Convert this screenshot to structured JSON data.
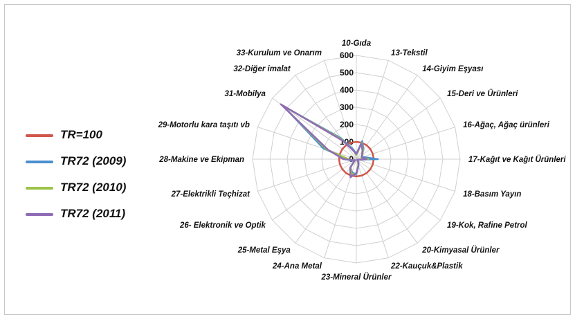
{
  "chart_data": {
    "type": "radar",
    "title": "",
    "categories": [
      "10-Gıda",
      "13-Tekstil",
      "14-Giyim Eşyası",
      "15-Deri ve Ürünleri",
      "16-Ağaç, Ağaç ürünleri",
      "17-Kağıt ve Kağıt Ürünleri",
      "18-Basım Yayın",
      "19-Kok, Rafine Petrol",
      "20-Kimyasal Ürünler",
      "22-Kauçuk&Plastik",
      "23-Mineral Ürünler",
      "24-Ana Metal",
      "25-Metal Eşya",
      "26- Elektronik ve Optik",
      "27-Elektrikli Teçhizat",
      "28-Makine ve Ekipman",
      "29-Motorlu kara taşıtı vb",
      "31-Mobilya",
      "32-Diğer imalat",
      "33-Kurulum ve Onarım"
    ],
    "rlim": [
      0,
      600
    ],
    "rticks": [
      "0",
      "100",
      "200",
      "300",
      "400",
      "500",
      "600"
    ],
    "grid": true,
    "legend_position": "left",
    "series": [
      {
        "name": "TR=100",
        "color": "#d0574b",
        "values": [
          100,
          100,
          100,
          100,
          100,
          100,
          100,
          100,
          100,
          100,
          100,
          100,
          100,
          100,
          100,
          100,
          100,
          100,
          100,
          100
        ]
      },
      {
        "name": "TR72 (2009)",
        "color": "#4a8fcf",
        "values": [
          30,
          110,
          70,
          40,
          40,
          125,
          10,
          5,
          20,
          40,
          90,
          80,
          60,
          10,
          30,
          50,
          200,
          520,
          150,
          60
        ]
      },
      {
        "name": "TR72 (2010)",
        "color": "#9dc34a",
        "values": [
          25,
          100,
          65,
          45,
          30,
          70,
          10,
          5,
          15,
          35,
          85,
          90,
          55,
          10,
          20,
          45,
          180,
          530,
          140,
          50
        ]
      },
      {
        "name": "TR72 (2011)",
        "color": "#8e6bb5",
        "values": [
          30,
          95,
          60,
          40,
          35,
          60,
          10,
          5,
          20,
          40,
          80,
          110,
          60,
          10,
          20,
          75,
          170,
          540,
          130,
          50
        ]
      }
    ]
  }
}
